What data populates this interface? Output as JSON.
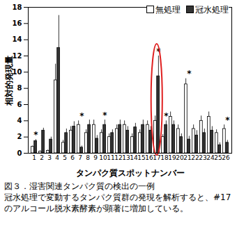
{
  "chart_data": {
    "type": "bar",
    "title": "図３．湿害関連タンパク質の検出の一例",
    "caption": "冠水処理で変動するタンパク質群の発現を解析すると、#17 のアルコール脱水素酵素が顕著に増加している。",
    "x_label": "タンパク質スポットナンバー",
    "y_label": "相対的発現量",
    "categories": [
      "1",
      "2",
      "3",
      "4",
      "5",
      "6",
      "7",
      "8",
      "9",
      "10",
      "11",
      "12",
      "13",
      "14",
      "15",
      "16",
      "17",
      "18",
      "19",
      "20",
      "21",
      "22",
      "23",
      "24",
      "25",
      "26"
    ],
    "series": [
      {
        "name": "無処理",
        "color": "#ffffff",
        "values": [
          0.8,
          0.2,
          0.3,
          9,
          1.3,
          2.8,
          3.5,
          2.5,
          3.5,
          2.5,
          2,
          3,
          3.5,
          2,
          2.5,
          3.5,
          4,
          2,
          4.5,
          3,
          8.5,
          3,
          4,
          4.5,
          2.5,
          3
        ],
        "errors": [
          0.1,
          0.1,
          0.1,
          2,
          0.3,
          0.5,
          0.5,
          0.4,
          0.6,
          0.4,
          0.4,
          0.5,
          0.5,
          0.4,
          0.4,
          0.5,
          0.6,
          0.3,
          0.6,
          0.5,
          0.7,
          0.5,
          0.6,
          0.6,
          0.4,
          0.5
        ]
      },
      {
        "name": "冠水処理",
        "color": "#333333",
        "values": [
          1.5,
          2.8,
          1.7,
          13,
          2.5,
          3.3,
          0.7,
          3.5,
          1.8,
          3.5,
          2.5,
          3.5,
          2.8,
          3.2,
          3.5,
          2.8,
          9.5,
          3.5,
          3.5,
          2,
          1.7,
          2.2,
          2.5,
          2.8,
          1,
          1.3
        ],
        "errors": [
          0.2,
          0.3,
          0.3,
          4,
          0.5,
          0.6,
          0.2,
          0.6,
          0.4,
          0.6,
          0.4,
          0.6,
          0.5,
          0.5,
          0.6,
          0.5,
          2.5,
          0.5,
          0.5,
          0.4,
          0.4,
          0.6,
          0.5,
          0.5,
          0.3,
          0.3
        ]
      }
    ],
    "annotations": [
      {
        "category": "1",
        "text": "*"
      },
      {
        "category": "7",
        "text": "*"
      },
      {
        "category": "10",
        "text": "*"
      },
      {
        "category": "17",
        "text": "*"
      },
      {
        "category": "18",
        "text": "*"
      },
      {
        "category": "21",
        "text": "*"
      },
      {
        "category": "26",
        "text": "*"
      }
    ],
    "highlight": "17",
    "legend": "top-right",
    "ylim": [
      0,
      18
    ],
    "yticks": [
      0,
      2,
      4,
      6,
      8,
      10,
      12,
      14,
      16,
      18
    ],
    "grid": false
  }
}
